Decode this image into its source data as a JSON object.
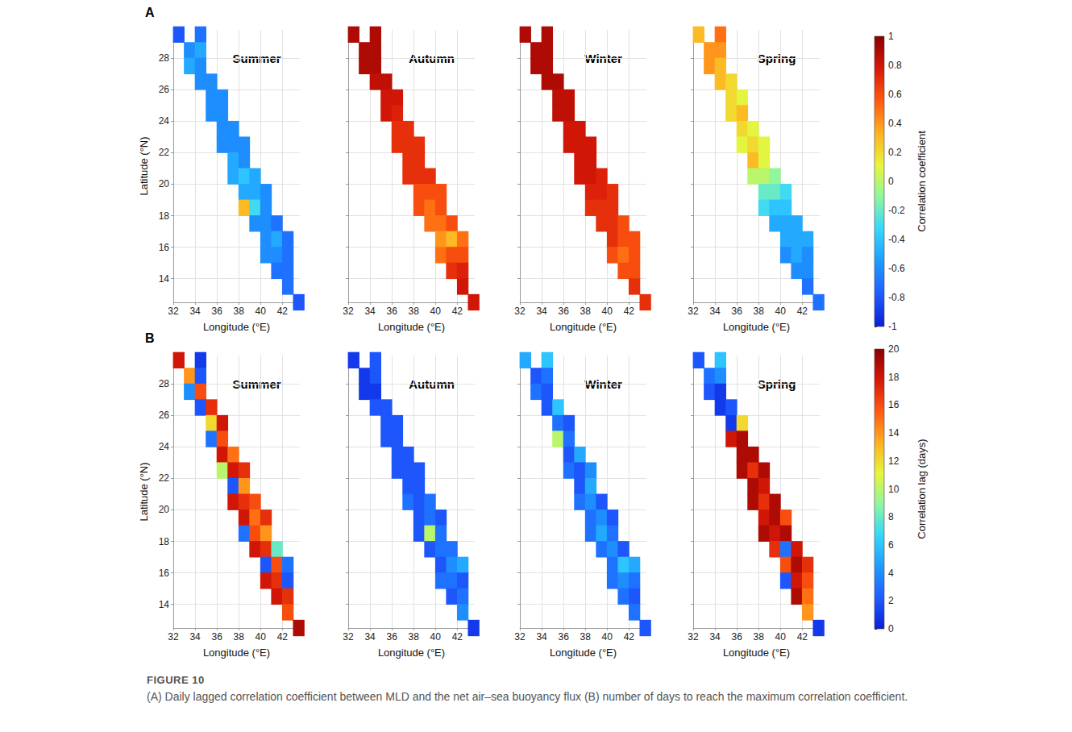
{
  "figure_label": "FIGURE 10",
  "caption": "(A) Daily lagged correlation coefficient between MLD and the net air–sea buoyancy flux (B) number of days to reach the maximum correlation coefficient.",
  "cells": {
    "lon": [
      32.5,
      34.5,
      33.5,
      34.5,
      33.5,
      34.5,
      34.5,
      35.5,
      35.5,
      36.5,
      35.5,
      36.5,
      36.5,
      37.5,
      36.5,
      37.5,
      38.5,
      37.5,
      38.5,
      37.5,
      38.5,
      39.5,
      38.5,
      39.5,
      40.5,
      38.5,
      39.5,
      40.5,
      39.5,
      40.5,
      41.5,
      40.5,
      41.5,
      42.5,
      40.5,
      41.5,
      42.5,
      41.5,
      42.5,
      42.5,
      43.5
    ],
    "lat": [
      29.5,
      29.5,
      28.5,
      28.5,
      27.5,
      27.5,
      26.5,
      26.5,
      25.5,
      25.5,
      24.5,
      24.5,
      23.5,
      23.5,
      22.5,
      22.5,
      22.5,
      21.5,
      21.5,
      20.5,
      20.5,
      20.5,
      19.5,
      19.5,
      19.5,
      18.5,
      18.5,
      18.5,
      17.5,
      17.5,
      17.5,
      16.5,
      16.5,
      16.5,
      15.5,
      15.5,
      15.5,
      14.5,
      14.5,
      13.5,
      12.5
    ]
  },
  "chart_data": [
    {
      "type": "heatmap",
      "panel_label": "A",
      "xlabel": "Longitude (°E)",
      "ylabel": "Latitude (°N)",
      "xlim": [
        32,
        43.6
      ],
      "ylim": [
        12.5,
        29.8
      ],
      "xticks": [
        32,
        34,
        36,
        38,
        40,
        42
      ],
      "yticks": [
        14,
        16,
        18,
        20,
        22,
        24,
        26,
        28
      ],
      "grid": true,
      "colorbar": {
        "range": [
          -1,
          1
        ],
        "ticks": [
          -1,
          -0.8,
          -0.6,
          -0.4,
          -0.2,
          0,
          0.2,
          0.4,
          0.6,
          0.8,
          1
        ],
        "label": "Correlation coefficient"
      },
      "panels": [
        {
          "title": "Summer",
          "values": [
            -0.8,
            -0.7,
            -0.6,
            -0.5,
            -0.5,
            -0.6,
            -0.6,
            -0.6,
            -0.6,
            -0.6,
            -0.6,
            -0.6,
            -0.6,
            -0.6,
            -0.6,
            -0.6,
            -0.6,
            -0.5,
            -0.6,
            -0.5,
            -0.4,
            -0.5,
            -0.5,
            -0.5,
            -0.6,
            0.3,
            -0.3,
            -0.6,
            -0.6,
            -0.6,
            -0.7,
            -0.6,
            -0.5,
            -0.7,
            -0.6,
            -0.6,
            -0.7,
            -0.7,
            -0.7,
            -0.7,
            -0.8
          ]
        },
        {
          "title": "Autumn",
          "tick_labels": "x",
          "values": [
            0.9,
            0.9,
            0.9,
            0.9,
            0.9,
            0.9,
            0.85,
            0.85,
            0.8,
            0.8,
            0.8,
            0.75,
            0.7,
            0.7,
            0.7,
            0.7,
            0.7,
            0.7,
            0.7,
            0.7,
            0.7,
            0.7,
            0.6,
            0.6,
            0.6,
            0.6,
            0.5,
            0.6,
            0.5,
            0.5,
            0.6,
            0.4,
            0.3,
            0.5,
            0.5,
            0.6,
            0.6,
            0.7,
            0.75,
            0.8,
            0.8
          ]
        },
        {
          "title": "Winter",
          "tick_labels": "x",
          "values": [
            0.9,
            0.9,
            0.9,
            0.9,
            0.9,
            0.9,
            0.9,
            0.9,
            0.85,
            0.85,
            0.85,
            0.85,
            0.8,
            0.8,
            0.8,
            0.8,
            0.8,
            0.8,
            0.8,
            0.8,
            0.8,
            0.75,
            0.75,
            0.75,
            0.7,
            0.7,
            0.7,
            0.7,
            0.7,
            0.7,
            0.6,
            0.7,
            0.6,
            0.6,
            0.6,
            0.5,
            0.6,
            0.6,
            0.6,
            0.7,
            0.7
          ]
        },
        {
          "title": "Spring",
          "tick_labels": "x",
          "values": [
            0.3,
            0.5,
            0.4,
            0.4,
            0.4,
            0.3,
            0.3,
            0.2,
            0.2,
            0.1,
            0.2,
            0.3,
            0.2,
            0.1,
            0.1,
            0.2,
            0.1,
            0.3,
            0.1,
            0,
            0,
            -0.1,
            -0.2,
            -0.2,
            -0.3,
            -0.3,
            -0.4,
            -0.4,
            -0.5,
            -0.5,
            -0.5,
            -0.5,
            -0.5,
            -0.5,
            -0.6,
            -0.5,
            -0.6,
            -0.6,
            -0.6,
            -0.7,
            -0.7
          ]
        }
      ]
    },
    {
      "type": "heatmap",
      "panel_label": "B",
      "xlabel": "Longitude (°E)",
      "ylabel": "Latitude (°N)",
      "xlim": [
        32,
        43.6
      ],
      "ylim": [
        12.5,
        29.8
      ],
      "xticks": [
        32,
        34,
        36,
        38,
        40,
        42
      ],
      "yticks": [
        14,
        16,
        18,
        20,
        22,
        24,
        26,
        28
      ],
      "grid": true,
      "colorbar": {
        "range": [
          0,
          20
        ],
        "ticks": [
          0,
          2,
          4,
          6,
          8,
          10,
          12,
          14,
          16,
          18,
          20
        ],
        "label": "Correlation lag (days)"
      },
      "panels": [
        {
          "title": "Summer",
          "values": [
            18,
            1,
            14,
            2,
            4,
            16,
            2,
            17,
            12,
            18,
            3,
            16,
            18,
            15,
            10,
            18,
            17,
            2,
            14,
            18,
            17,
            16,
            18,
            15,
            17,
            3,
            16,
            14,
            18,
            17,
            8,
            2,
            16,
            3,
            18,
            17,
            2,
            18,
            17,
            16,
            19
          ]
        },
        {
          "title": "Autumn",
          "tick_labels": "x",
          "values": [
            1,
            2,
            1,
            2,
            1,
            1,
            2,
            2,
            2,
            2,
            2,
            2,
            2,
            2,
            2,
            2,
            2,
            2,
            2,
            3,
            2,
            3,
            2,
            3,
            2,
            2,
            10,
            3,
            2,
            3,
            3,
            2,
            4,
            5,
            3,
            3,
            2,
            2,
            3,
            4,
            1
          ]
        },
        {
          "title": "Winter",
          "tick_labels": "x",
          "values": [
            5,
            6,
            2,
            3,
            3,
            2,
            2,
            6,
            3,
            2,
            10,
            3,
            2,
            5,
            3,
            2,
            4,
            2,
            5,
            3,
            4,
            2,
            3,
            4,
            2,
            3,
            5,
            3,
            3,
            4,
            2,
            3,
            6,
            5,
            3,
            4,
            3,
            3,
            2,
            3,
            2
          ]
        },
        {
          "title": "Spring",
          "tick_labels": "x",
          "values": [
            2,
            6,
            3,
            4,
            2,
            1,
            1,
            2,
            1,
            12,
            18,
            19,
            19,
            19,
            19,
            17,
            19,
            19,
            18,
            19,
            17,
            19,
            18,
            19,
            16,
            19,
            18,
            19,
            17,
            3,
            18,
            16,
            19,
            17,
            2,
            18,
            16,
            19,
            15,
            14,
            1
          ]
        }
      ]
    }
  ]
}
